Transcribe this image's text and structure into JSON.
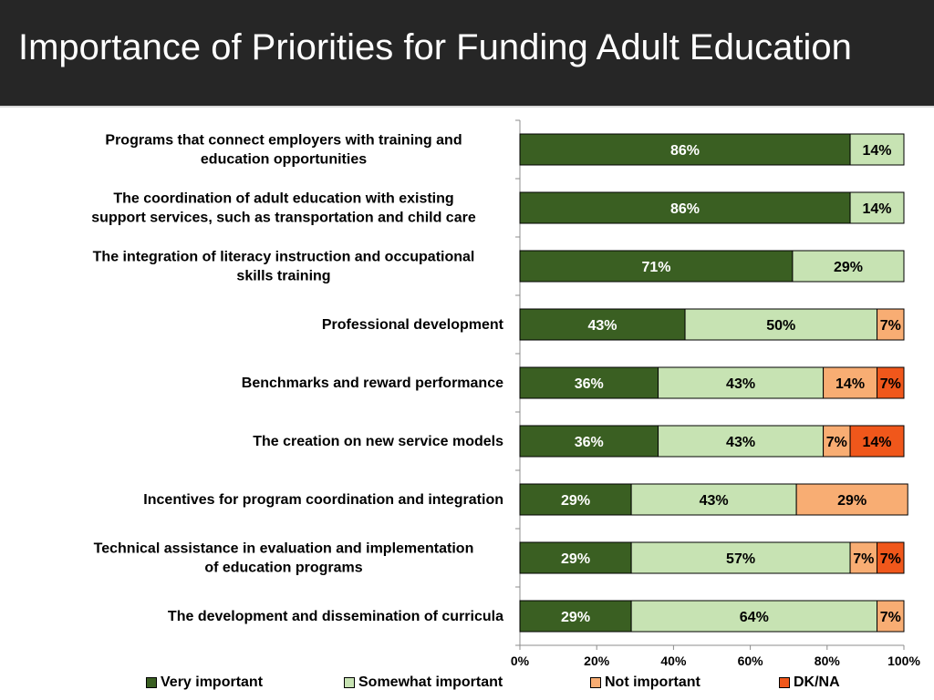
{
  "header": {
    "title": "Importance of Priorities for Funding Adult Education"
  },
  "colors": {
    "very_important": "#3a5f22",
    "somewhat_important": "#c7e3b3",
    "not_important": "#f8ad73",
    "dk_na": "#f0571b",
    "title_bar": "#262626"
  },
  "chart_data": {
    "type": "bar",
    "orientation": "horizontal",
    "stacked": true,
    "categories": [
      "Programs that connect employers with training and education opportunities",
      "The coordination of adult education with existing support services, such as transportation and child care",
      "The integration of literacy instruction and occupational skills training",
      "Professional development",
      "Benchmarks and reward performance",
      "The creation on new service models",
      "Incentives for program coordination and integration",
      "Technical assistance in evaluation and implementation of education programs",
      "The development and dissemination of curricula"
    ],
    "category_label_lines": [
      [
        "Programs that connect employers with training and",
        "education opportunities"
      ],
      [
        "The coordination of adult education with existing",
        "support services, such as transportation and child care"
      ],
      [
        "The integration of literacy instruction and occupational",
        "skills training"
      ],
      [
        "Professional development"
      ],
      [
        "Benchmarks and reward performance"
      ],
      [
        "The creation on new service models"
      ],
      [
        "Incentives for program coordination and integration"
      ],
      [
        "Technical assistance in evaluation and implementation",
        "of education programs"
      ],
      [
        "The development and dissemination of curricula"
      ]
    ],
    "series": [
      {
        "name": "Very important",
        "color": "#3a5f22",
        "label_color": "#ffffff",
        "values": [
          86,
          86,
          71,
          43,
          36,
          36,
          29,
          29,
          29
        ]
      },
      {
        "name": "Somewhat important",
        "color": "#c7e3b3",
        "label_color": "#000000",
        "values": [
          14,
          14,
          29,
          50,
          43,
          43,
          43,
          57,
          64
        ]
      },
      {
        "name": "Not important",
        "color": "#f8ad73",
        "label_color": "#000000",
        "values": [
          0,
          0,
          0,
          7,
          14,
          7,
          29,
          7,
          7
        ]
      },
      {
        "name": "DK/NA",
        "color": "#f0571b",
        "label_color": "#000000",
        "values": [
          0,
          0,
          0,
          0,
          7,
          14,
          0,
          7,
          0
        ]
      }
    ],
    "xlim": [
      0,
      100
    ],
    "xticks": [
      "0%",
      "20%",
      "40%",
      "60%",
      "80%",
      "100%"
    ],
    "grid": false,
    "legend_position": "bottom"
  }
}
